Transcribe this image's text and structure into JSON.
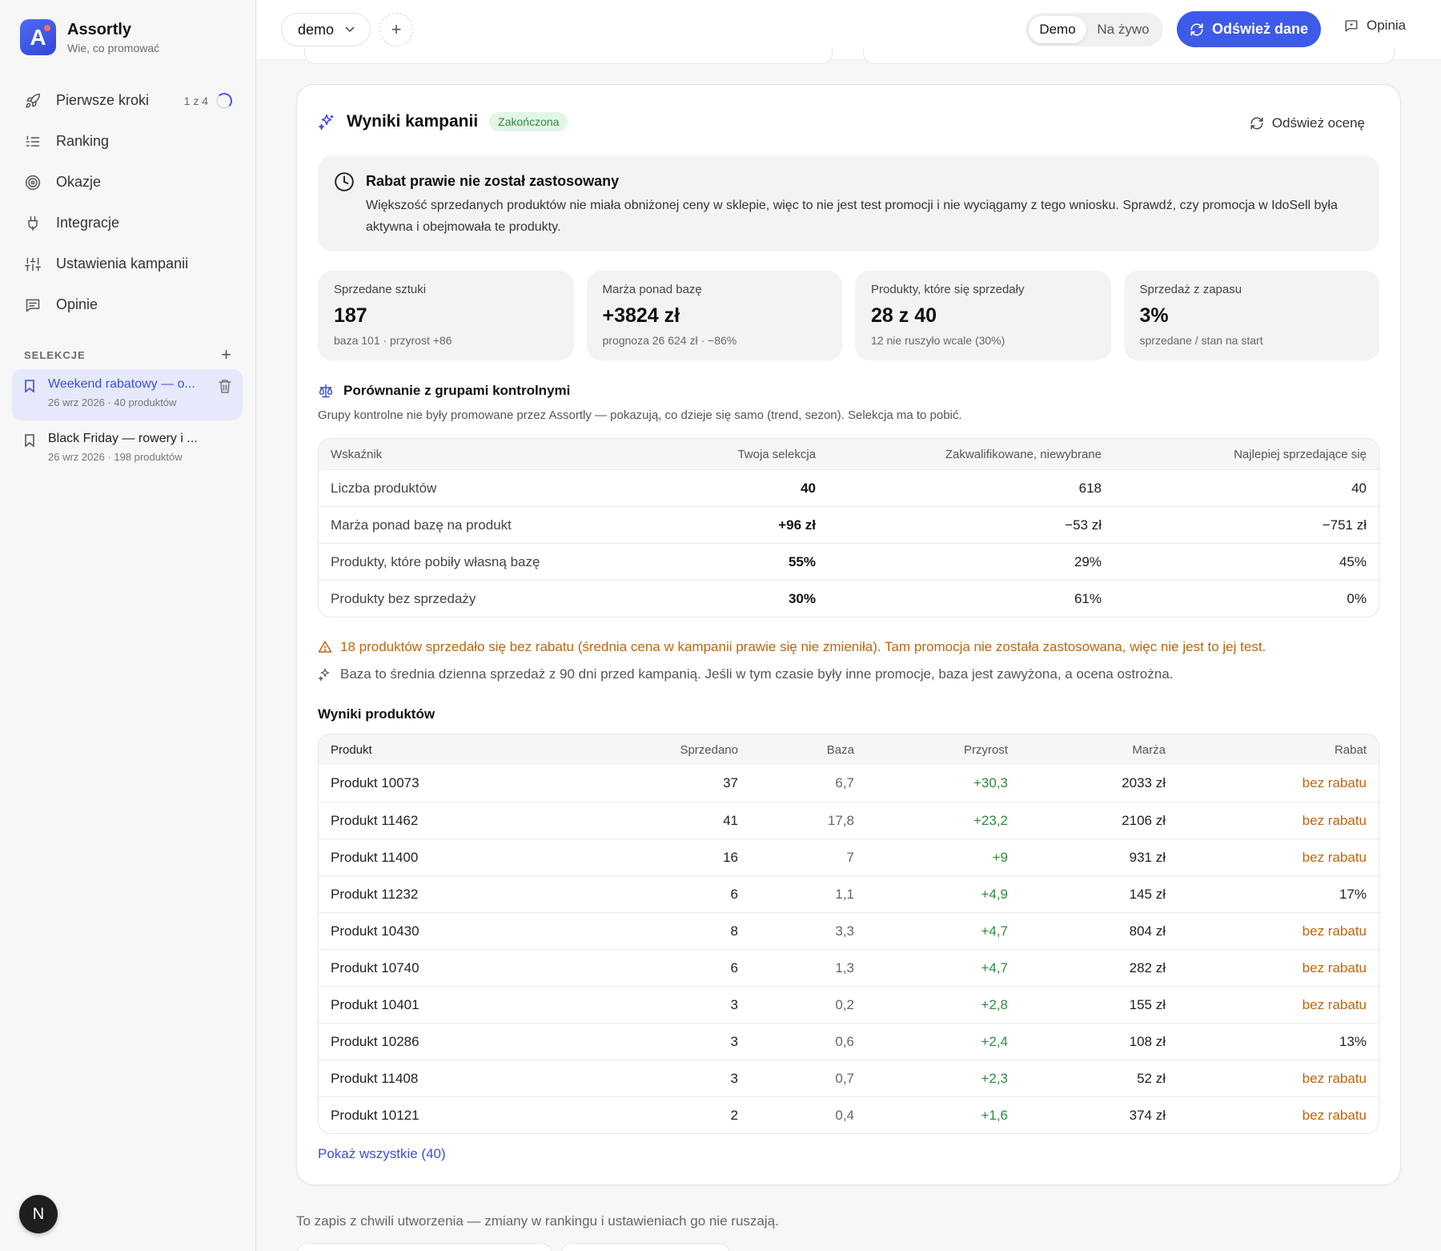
{
  "brand": {
    "name": "Assortly",
    "tagline": "Wie, co promować",
    "logo_letter": "A"
  },
  "nav": {
    "items": [
      {
        "label": "Pierwsze kroki",
        "icon": "rocket-icon",
        "progress": "1 z 4"
      },
      {
        "label": "Ranking",
        "icon": "list-ordered-icon"
      },
      {
        "label": "Okazje",
        "icon": "target-icon"
      },
      {
        "label": "Integracje",
        "icon": "plug-icon"
      },
      {
        "label": "Ustawienia kampanii",
        "icon": "sliders-icon"
      },
      {
        "label": "Opinie",
        "icon": "message-icon"
      }
    ]
  },
  "selections": {
    "header": "SELEKCJE",
    "items": [
      {
        "title": "Weekend rabatowy — o...",
        "meta": "26 wrz 2026 · 40 produktów",
        "active": true
      },
      {
        "title": "Black Friday — rowery i ...",
        "meta": "26 wrz 2026 · 198 produktów",
        "active": false
      }
    ]
  },
  "avatar": {
    "letter": "N"
  },
  "topbar": {
    "workspace": "demo",
    "mode_demo": "Demo",
    "mode_live": "Na żywo",
    "refresh_label": "Odśwież dane",
    "feedback_label": "Opinia"
  },
  "campaign": {
    "title": "Wyniki kampanii",
    "status": "Zakończona",
    "reassess_label": "Odśwież ocenę",
    "notice_title": "Rabat prawie nie został zastosowany",
    "notice_body": "Większość sprzedanych produktów nie miała obniżonej ceny w sklepie, więc to nie jest test promocji i nie wyciągamy z tego wniosku. Sprawdź, czy promocja w IdoSell była aktywna i obejmowała te produkty.",
    "stats": [
      {
        "label": "Sprzedane sztuki",
        "value": "187",
        "sub": "baza 101 · przyrost +86"
      },
      {
        "label": "Marża ponad bazę",
        "value": "+3824 zł",
        "sub": "prognoza 26 624 zł · −86%"
      },
      {
        "label": "Produkty, które się sprzedały",
        "value": "28 z 40",
        "sub": "12 nie ruszyło wcale (30%)"
      },
      {
        "label": "Sprzedaż z zapasu",
        "value": "3%",
        "sub": "sprzedane / stan na start"
      }
    ]
  },
  "comparison": {
    "title": "Porównanie z grupami kontrolnymi",
    "description": "Grupy kontrolne nie były promowane przez Assortly — pokazują, co dzieje się samo (trend, sezon). Selekcja ma to pobić.",
    "headers": [
      "Wskaźnik",
      "Twoja selekcja",
      "Zakwalifikowane, niewybrane",
      "Najlepiej sprzedające się"
    ],
    "rows": [
      [
        "Liczba produktów",
        "40",
        "618",
        "40"
      ],
      [
        "Marża ponad bazę na produkt",
        "+96 zł",
        "−53 zł",
        "−751 zł"
      ],
      [
        "Produkty, które pobiły własną bazę",
        "55%",
        "29%",
        "45%"
      ],
      [
        "Produkty bez sprzedaży",
        "30%",
        "61%",
        "0%"
      ]
    ]
  },
  "warning": "18 produktów sprzedało się bez rabatu (średnia cena w kampanii prawie się nie zmieniła). Tam promocja nie została zastosowana, więc nie jest to jej test.",
  "note": "Baza to średnia dzienna sprzedaż z 90 dni przed kampanią. Jeśli w tym czasie były inne promocje, baza jest zawyżona, a ocena ostrożna.",
  "products": {
    "title": "Wyniki produktów",
    "headers": [
      "Produkt",
      "Sprzedano",
      "Baza",
      "Przyrost",
      "Marża",
      "Rabat"
    ],
    "rows": [
      [
        "Produkt 10073",
        "37",
        "6,7",
        "+30,3",
        "2033 zł",
        "bez rabatu"
      ],
      [
        "Produkt 11462",
        "41",
        "17,8",
        "+23,2",
        "2106 zł",
        "bez rabatu"
      ],
      [
        "Produkt 11400",
        "16",
        "7",
        "+9",
        "931 zł",
        "bez rabatu"
      ],
      [
        "Produkt 11232",
        "6",
        "1,1",
        "+4,9",
        "145 zł",
        "17%"
      ],
      [
        "Produkt 10430",
        "8",
        "3,3",
        "+4,7",
        "804 zł",
        "bez rabatu"
      ],
      [
        "Produkt 10740",
        "6",
        "1,3",
        "+4,7",
        "282 zł",
        "bez rabatu"
      ],
      [
        "Produkt 10401",
        "3",
        "0,2",
        "+2,8",
        "155 zł",
        "bez rabatu"
      ],
      [
        "Produkt 10286",
        "3",
        "0,6",
        "+2,4",
        "108 zł",
        "13%"
      ],
      [
        "Produkt 11408",
        "3",
        "0,7",
        "+2,3",
        "52 zł",
        "bez rabatu"
      ],
      [
        "Produkt 10121",
        "2",
        "0,4",
        "+1,6",
        "374 zł",
        "bez rabatu"
      ]
    ],
    "show_all_label": "Pokaż wszystkie (40)"
  },
  "footer_note": "To zapis z chwili utworzenia — zmiany w rankingu i ustawieniach go nie ruszają.",
  "colors": {
    "accent": "#3e5ae8",
    "success": "#2e8b3e",
    "warning": "#c2650a"
  }
}
